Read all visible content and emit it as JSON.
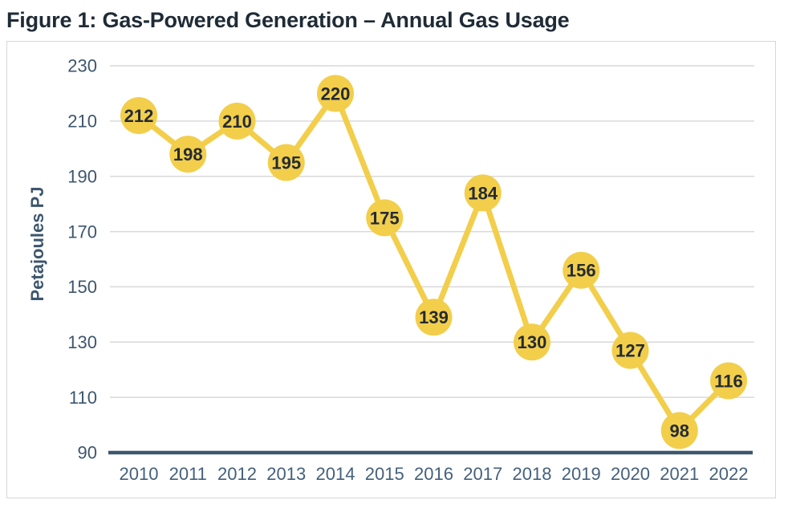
{
  "figure_title": "Figure 1: Gas-Powered Generation – Annual Gas Usage",
  "chart_data": {
    "type": "line",
    "title": "Figure 1: Gas-Powered Generation – Annual Gas Usage",
    "categories": [
      "2010",
      "2011",
      "2012",
      "2013",
      "2014",
      "2015",
      "2016",
      "2017",
      "2018",
      "2019",
      "2020",
      "2021",
      "2022"
    ],
    "values": [
      212,
      198,
      210,
      195,
      220,
      175,
      139,
      184,
      130,
      156,
      127,
      98,
      116
    ],
    "series_name": "Annual Gas Usage",
    "xlabel": "",
    "ylabel": "Petajoules PJ",
    "ylim": [
      90,
      230
    ],
    "yticks": [
      90,
      110,
      130,
      150,
      170,
      190,
      210,
      230
    ],
    "grid": true,
    "legend": "none",
    "point_labels": "inside-markers",
    "colors": {
      "series_line": "#F2CE4B",
      "marker_fill": "#F2CE4B",
      "marker_label": "#242B33",
      "axis_baseline": "#3E5770",
      "y_tick_label": "#3D566E",
      "x_tick_label": "#44607C",
      "y_axis_title": "#3D566E",
      "gridline": "#D9D9D9",
      "figure_title_text": "#1F2B36",
      "frame_border": "#D4D7DB"
    }
  }
}
